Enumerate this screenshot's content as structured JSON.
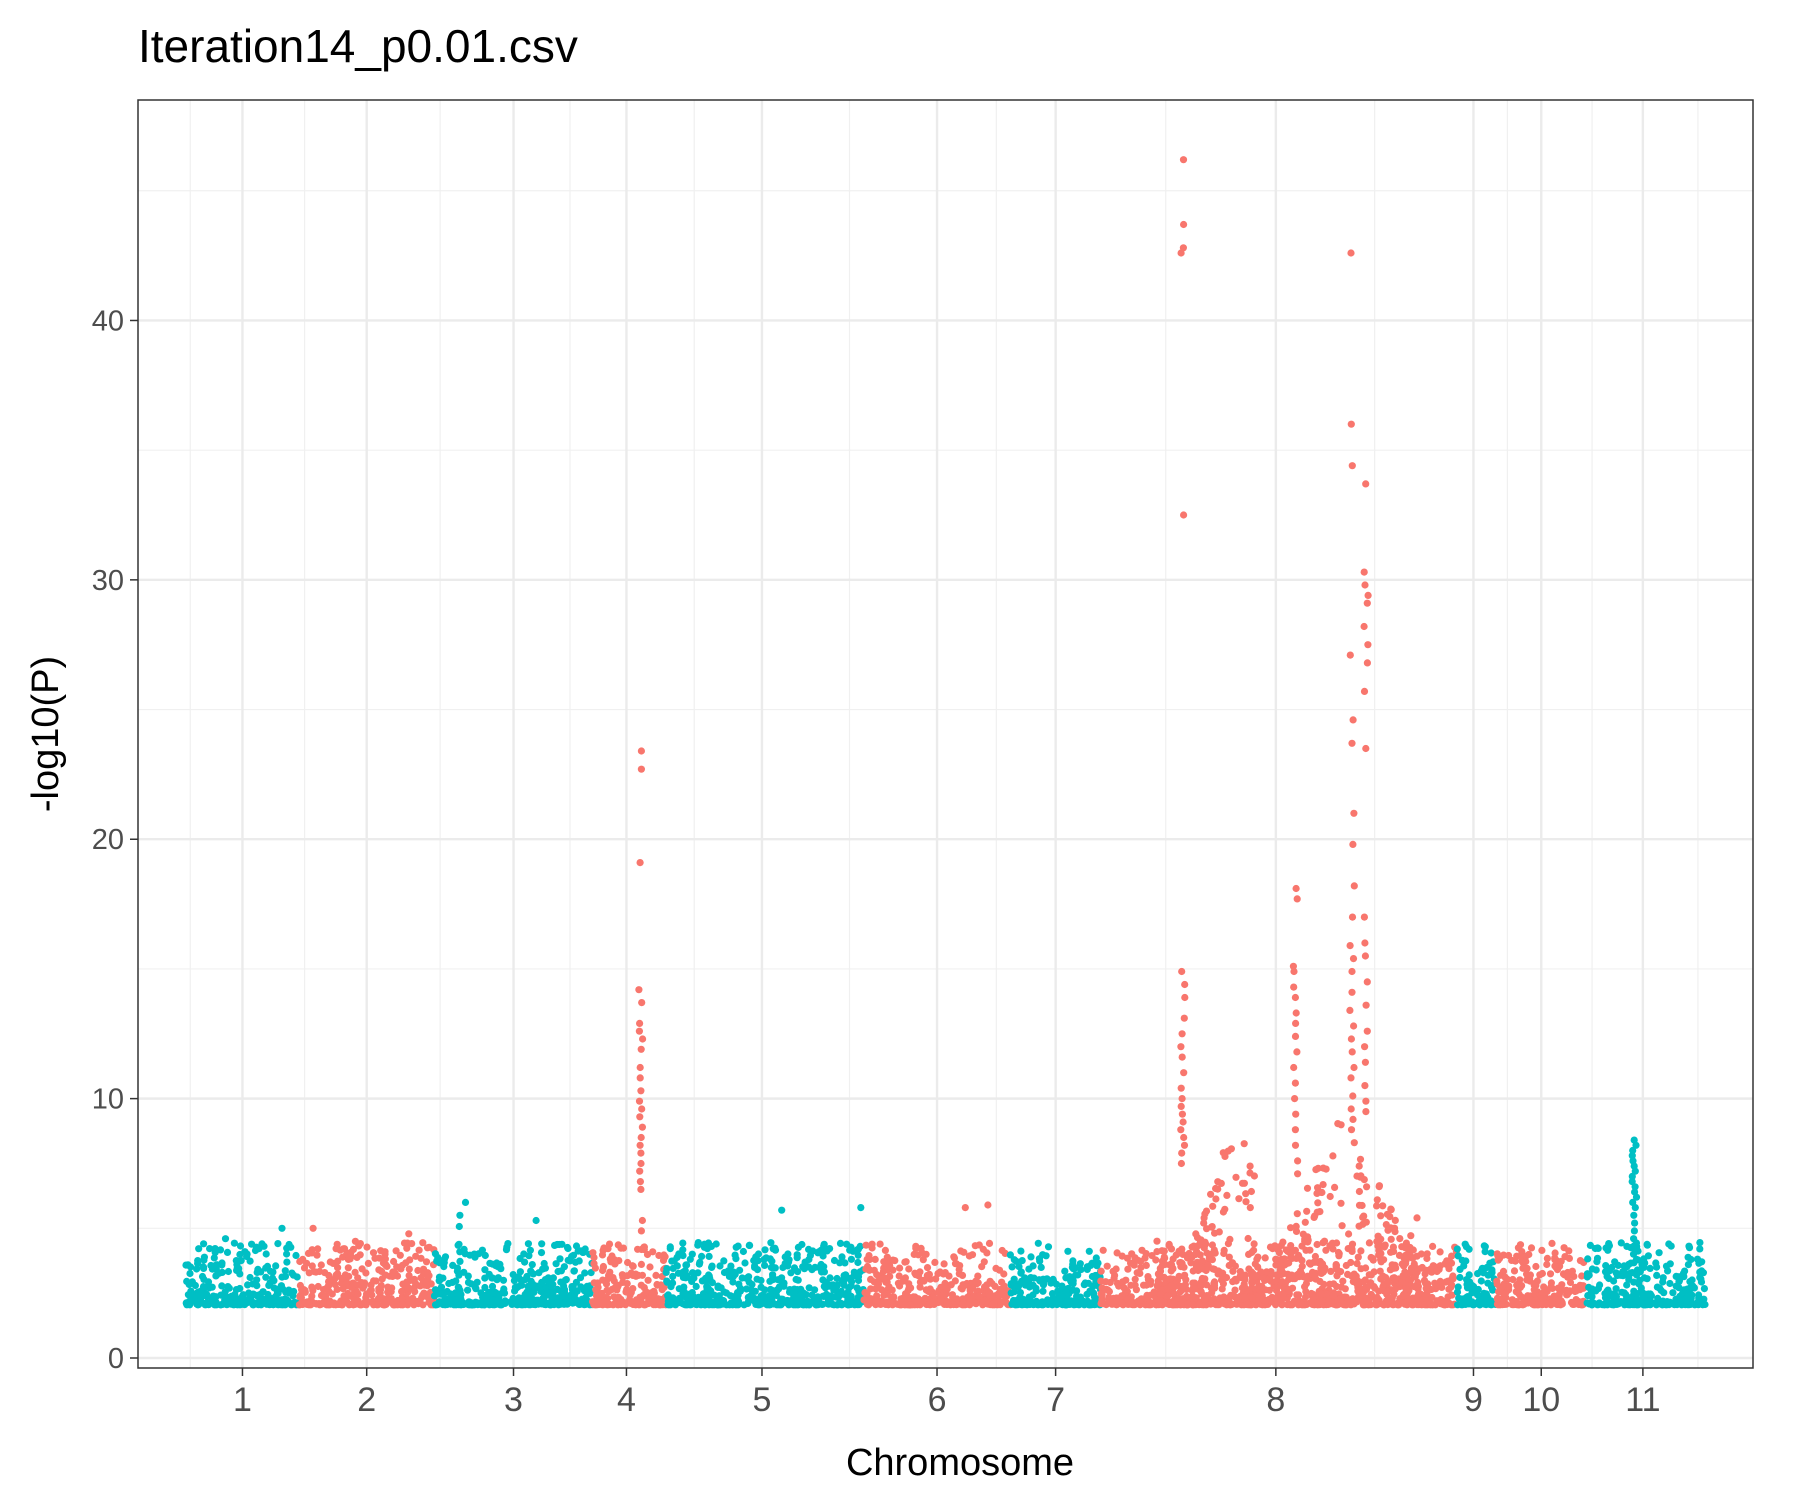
{
  "chart_data": {
    "type": "scatter",
    "title": "Iteration14_p0.01.csv",
    "xlabel": "Chromosome",
    "ylabel": "-log10(P)",
    "ylim": [
      0,
      48.5
    ],
    "yticks": [
      0,
      10,
      20,
      30,
      40
    ],
    "grid": true,
    "legend": "none",
    "colors": [
      "#00bfc4",
      "#f8766d"
    ],
    "categories": [
      "1",
      "2",
      "3",
      "4",
      "5",
      "6",
      "7",
      "8",
      "9",
      "10",
      "11"
    ],
    "chromosomes": [
      {
        "label": "1",
        "color": "#00bfc4",
        "range": [
          0,
          20
        ],
        "center": 10
      },
      {
        "label": "2",
        "color": "#f8766d",
        "range": [
          20,
          44
        ],
        "center": 32
      },
      {
        "label": "3",
        "color": "#00bfc4",
        "range": [
          44,
          72
        ],
        "center": 58
      },
      {
        "label": "4",
        "color": "#f8766d",
        "range": [
          72,
          85
        ],
        "center": 78
      },
      {
        "label": "5",
        "color": "#00bfc4",
        "range": [
          85,
          120
        ],
        "center": 102
      },
      {
        "label": "6",
        "color": "#f8766d",
        "range": [
          120,
          146
        ],
        "center": 133
      },
      {
        "label": "7",
        "color": "#00bfc4",
        "range": [
          146,
          162
        ],
        "center": 154
      },
      {
        "label": "8",
        "color": "#f8766d",
        "range": [
          162,
          225
        ],
        "center": 193
      },
      {
        "label": "9",
        "color": "#00bfc4",
        "range": [
          225,
          232
        ],
        "center": 228
      },
      {
        "label": "10",
        "color": "#f8766d",
        "range": [
          232,
          248
        ],
        "center": 240
      },
      {
        "label": "11",
        "color": "#00bfc4",
        "range": [
          248,
          269
        ],
        "center": 258
      }
    ],
    "peaks": [
      {
        "chromosome": "4",
        "x": 80.5,
        "values": [
          23.4,
          22.7,
          19.1,
          14.2,
          13.7,
          12.9,
          12.6,
          12.3,
          11.9,
          11.2,
          10.8,
          10.3,
          9.9,
          9.6,
          9.3,
          8.9,
          8.5,
          8.2,
          7.9,
          7.5,
          7.2,
          6.8,
          6.5,
          5.3,
          4.9
        ]
      },
      {
        "chromosome": "8",
        "x": 176.5,
        "values": [
          46.2,
          43.7,
          42.8,
          42.6,
          32.5,
          14.9,
          14.4,
          13.9,
          13.1,
          12.5,
          12.0,
          11.6,
          11.0,
          10.4,
          10.0,
          9.7,
          9.4,
          9.1,
          8.8,
          8.5,
          8.2,
          7.9,
          7.5,
          4.2
        ]
      },
      {
        "chromosome": "8",
        "x": 206.5,
        "values": [
          42.6,
          36.0,
          34.4,
          27.1,
          24.6,
          23.7,
          21.0,
          19.8,
          18.2,
          17.0,
          15.9,
          15.4,
          14.9,
          14.1,
          13.4,
          12.8,
          12.3,
          11.8,
          11.2,
          10.8,
          10.1,
          9.6,
          9.2,
          8.8,
          8.3
        ]
      },
      {
        "chromosome": "8",
        "x": 209.0,
        "values": [
          33.7,
          30.3,
          29.8,
          29.4,
          29.1,
          28.2,
          27.5,
          26.8,
          25.7,
          23.5,
          17.0,
          16.0,
          15.5,
          14.5,
          13.6,
          12.6,
          12.0,
          11.4,
          10.5,
          9.9,
          9.5
        ]
      },
      {
        "chromosome": "8",
        "x": 196.5,
        "values": [
          18.1,
          17.7,
          15.1,
          14.9,
          14.3,
          13.9,
          13.3,
          12.9,
          12.4,
          11.8,
          11.2,
          10.6,
          10.0,
          9.4,
          8.8,
          8.2,
          7.6,
          7.1
        ]
      },
      {
        "chromosome": "11",
        "x": 256.5,
        "values": [
          8.4,
          8.2,
          8.0,
          7.8,
          7.6,
          7.4,
          7.2,
          7.0,
          6.8,
          6.6,
          6.4,
          6.2,
          6.0,
          5.8,
          5.5,
          5.2,
          4.9,
          4.6,
          4.3,
          4.0,
          3.8
        ]
      }
    ],
    "notable_points": [
      {
        "x": 7,
        "y": 4.6
      },
      {
        "x": 17,
        "y": 5.0
      },
      {
        "x": 22.5,
        "y": 5.0
      },
      {
        "x": 30,
        "y": 4.5
      },
      {
        "x": 49.5,
        "y": 6.0
      },
      {
        "x": 48.5,
        "y": 5.5
      },
      {
        "x": 62,
        "y": 5.3
      },
      {
        "x": 105.5,
        "y": 5.7
      },
      {
        "x": 119.5,
        "y": 5.8
      },
      {
        "x": 138,
        "y": 5.8
      },
      {
        "x": 142,
        "y": 5.9
      },
      {
        "x": 218,
        "y": 5.4
      }
    ]
  }
}
